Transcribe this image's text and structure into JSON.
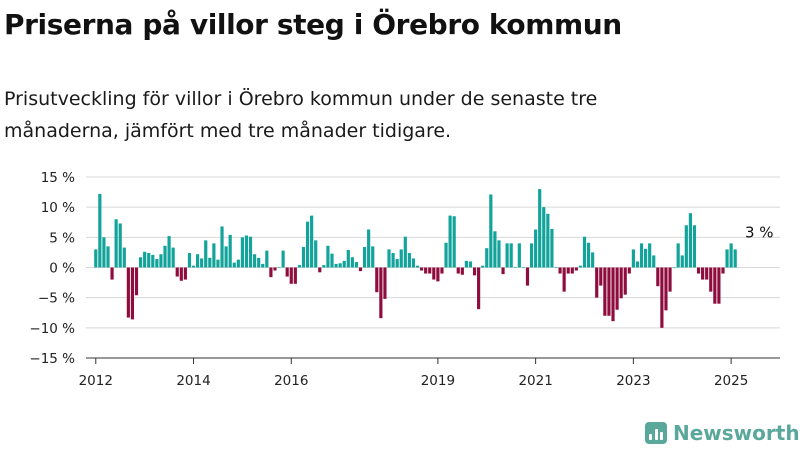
{
  "title": "Priserna på villor steg i Örebro kommun",
  "subtitle": "Prisutveckling för villor i Örebro kommun under de senaste tre månaderna, jämfört med tre månader tidigare.",
  "brand": {
    "name": "Newsworthy",
    "icon": "bar-chart-logo-icon"
  },
  "colors": {
    "positive": "#12a39a",
    "negative": "#8f0d3e",
    "grid": "#d8d8d8",
    "axis": "#222222"
  },
  "chart_data": {
    "type": "bar",
    "ylim": [
      -15,
      15
    ],
    "yticks": [
      15,
      10,
      5,
      0,
      -5,
      -10,
      -15
    ],
    "ytick_labels": [
      "15 %",
      "10 %",
      "5 %",
      "0 %",
      "−5 %",
      "−10 %",
      "−15 %"
    ],
    "xlim": [
      2011.8,
      2026.0
    ],
    "xticks": [
      2012,
      2014,
      2016,
      2019,
      2021,
      2023,
      2025
    ],
    "xtick_labels": [
      "2012",
      "2014",
      "2016",
      "2019",
      "2021",
      "2023",
      "2025"
    ],
    "annotation": {
      "text": "3 %",
      "x": 2025.33,
      "y": 3
    },
    "series": [
      {
        "start": 2012.0,
        "step_months": 1,
        "values": [
          3,
          12.2,
          5,
          3.5,
          -2,
          8,
          7.3,
          3.3,
          -8.3,
          -8.6,
          -4.6,
          1.7,
          2.6,
          2.4,
          2.1,
          1.4,
          2.2,
          3.6,
          5.2,
          3.3,
          -1.5,
          -2.2,
          -2,
          2.4,
          0.3,
          2.2,
          1.5,
          4.5,
          1.6,
          4,
          1.3,
          6.8,
          3.5,
          5.4,
          0.8,
          1.3,
          5,
          5.3,
          5.1,
          2.2,
          1.6,
          0.6,
          2.8,
          -1.6,
          -0.5,
          0,
          2.8,
          -1.5,
          -2.7,
          -2.7,
          0.4,
          3.4,
          7.6,
          8.6,
          4.5,
          -0.8,
          0.4,
          3.6,
          2.3,
          0.6,
          0.7,
          1.1,
          2.9,
          1.7,
          0.9,
          -0.6,
          3.4,
          6.3,
          3.5,
          -4.1,
          -8.4,
          -5.2,
          3,
          2.4,
          1.4,
          3,
          5.1,
          2.4,
          1.5,
          0.3,
          -0.5,
          -1,
          -1,
          -2,
          -2.3,
          -1,
          4.1,
          8.6,
          8.5,
          -1,
          -1.2,
          1.1,
          1,
          -1.3,
          -6.9,
          0.3,
          3.2,
          12.1,
          6,
          4.5,
          -1.1,
          4,
          4,
          0.1,
          4,
          0,
          -3,
          4,
          6.3,
          13,
          10,
          8.9,
          6.4,
          0,
          -1,
          -4,
          -1,
          -1,
          -0.5,
          0.3,
          5.1,
          4.1,
          2.5,
          -5,
          -3,
          -8,
          -8,
          -8.9,
          -7,
          -5.1,
          -4.5,
          -1,
          3,
          1,
          4,
          3.1,
          4,
          2,
          -3.1,
          -10,
          -7.1,
          -4,
          0,
          4,
          2,
          7,
          9,
          7,
          -1,
          -2,
          -2,
          -4,
          -6,
          -6,
          -1,
          3,
          4,
          3
        ]
      }
    ]
  }
}
